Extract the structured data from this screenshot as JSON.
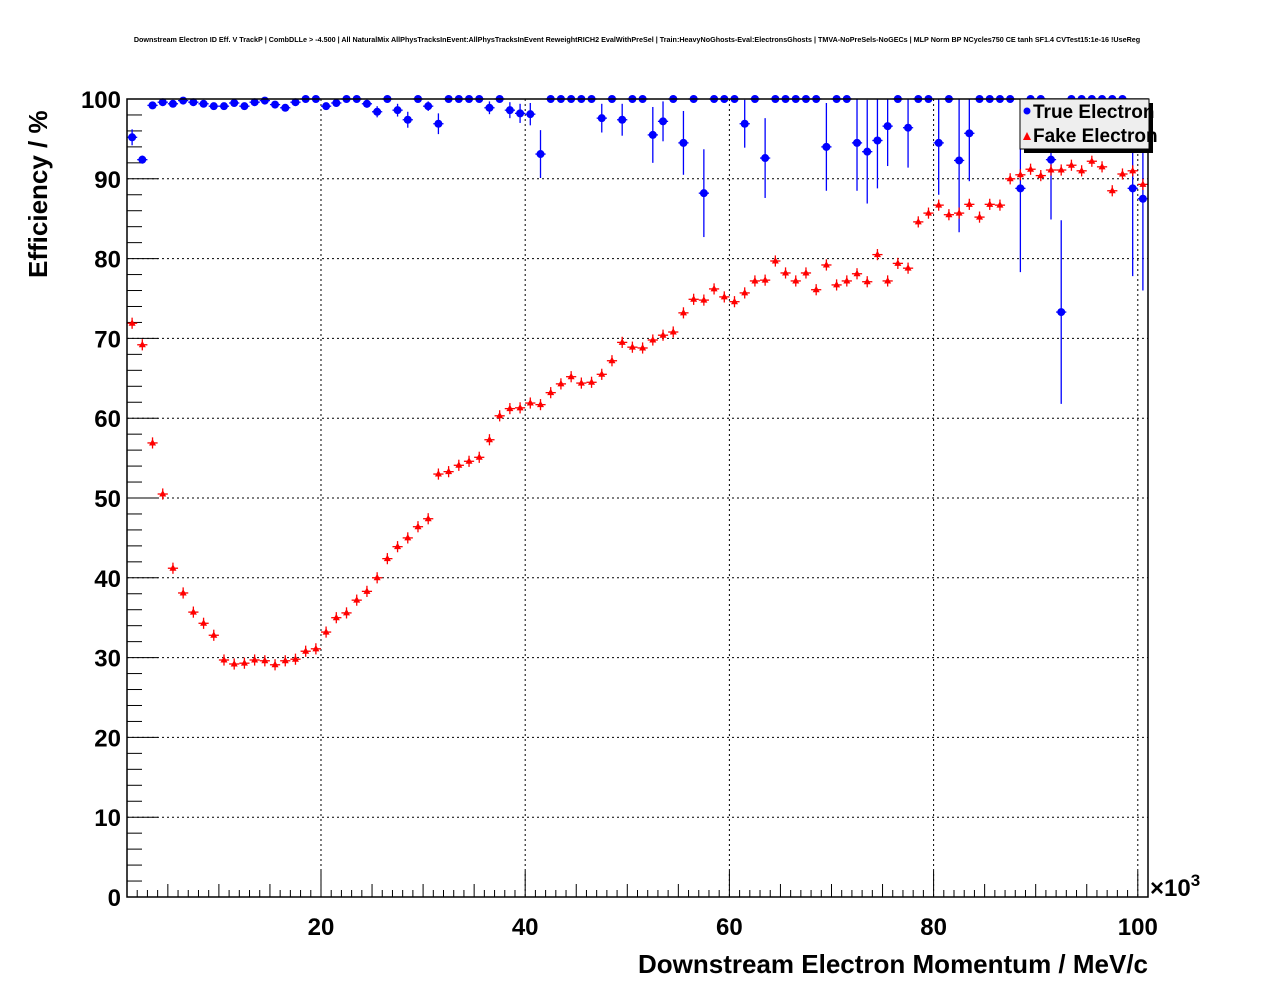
{
  "chart_data": {
    "type": "scatter",
    "title": "Downstream Electron ID Eff. V TrackP | CombDLLe > -4.500 | All NaturalMix AllPhysTracksInEvent:AllPhysTracksInEvent ReweightRICH2 EvalWithPreSel | Train:HeavyNoGhosts-Eval:ElectronsGhosts | TMVA-NoPreSels-NoGECs | MLP Norm BP NCycles750 CE tanh SF1.4 CVTest15:1e-16 !UseReg",
    "xlabel": "Downstream Electron Momentum / MeV/c",
    "ylabel": "Efficiency / %",
    "x_multiplier": "×10",
    "x_multiplier_exp": "3",
    "xlim": [
      1,
      101
    ],
    "ylim": [
      0,
      100
    ],
    "xticks": [
      "20",
      "40",
      "60",
      "80",
      "100"
    ],
    "yticks": [
      "0",
      "10",
      "20",
      "30",
      "40",
      "50",
      "60",
      "70",
      "80",
      "90",
      "100"
    ],
    "grid": true,
    "legend_position": "top-right",
    "x": [
      1.5,
      2.5,
      3.5,
      4.5,
      5.5,
      6.5,
      7.5,
      8.5,
      9.5,
      10.5,
      11.5,
      12.5,
      13.5,
      14.5,
      15.5,
      16.5,
      17.5,
      18.5,
      19.5,
      20.5,
      21.5,
      22.5,
      23.5,
      24.5,
      25.5,
      26.5,
      27.5,
      28.5,
      29.5,
      30.5,
      31.5,
      32.5,
      33.5,
      34.5,
      35.5,
      36.5,
      37.5,
      38.5,
      39.5,
      40.5,
      41.5,
      42.5,
      43.5,
      44.5,
      45.5,
      46.5,
      47.5,
      48.5,
      49.5,
      50.5,
      51.5,
      52.5,
      53.5,
      54.5,
      55.5,
      56.5,
      57.5,
      58.5,
      59.5,
      60.5,
      61.5,
      62.5,
      63.5,
      64.5,
      65.5,
      66.5,
      67.5,
      68.5,
      69.5,
      70.5,
      71.5,
      72.5,
      73.5,
      74.5,
      75.5,
      76.5,
      77.5,
      78.5,
      79.5,
      80.5,
      81.5,
      82.5,
      83.5,
      84.5,
      85.5,
      86.5,
      87.5,
      88.5,
      89.5,
      90.5,
      91.5,
      92.5,
      93.5,
      94.5,
      95.5,
      96.5,
      97.5,
      98.5,
      99.5,
      100.5
    ],
    "series": [
      {
        "name": "True Electron",
        "color": "#0000ff",
        "marker": "circle",
        "values": [
          95.2,
          92.4,
          99.2,
          99.6,
          99.4,
          99.8,
          99.6,
          99.4,
          99.1,
          99.1,
          99.5,
          99.1,
          99.6,
          99.8,
          99.3,
          98.9,
          99.6,
          100,
          100,
          99.1,
          99.5,
          100,
          100,
          99.4,
          98.4,
          100,
          98.6,
          97.4,
          100,
          99.1,
          96.9,
          100,
          100,
          100,
          100,
          98.9,
          100,
          98.6,
          98.2,
          98.1,
          93.1,
          100,
          100,
          100,
          100,
          100,
          97.6,
          100,
          97.4,
          100,
          100,
          95.5,
          97.2,
          100,
          94.5,
          100,
          88.2,
          100,
          100,
          100,
          96.9,
          100,
          92.6,
          100,
          100,
          100,
          100,
          100,
          94.0,
          100,
          100,
          94.5,
          93.4,
          94.8,
          96.6,
          100,
          96.4,
          100,
          100,
          94.5,
          100,
          92.3,
          95.7,
          100,
          100,
          100,
          100,
          88.8,
          100,
          100,
          92.4,
          73.3,
          100,
          100,
          100,
          100,
          100,
          100,
          88.8,
          87.5
        ],
        "errors": [
          1.0,
          0.5,
          0.3,
          0.3,
          0.3,
          0.2,
          0.3,
          0.3,
          0.3,
          0.3,
          0.3,
          0.3,
          0.3,
          0.2,
          0.3,
          0.4,
          0.3,
          0.2,
          0.2,
          0.4,
          0.3,
          0.2,
          0.2,
          0.5,
          0.7,
          0.2,
          0.8,
          1.0,
          0.2,
          0.6,
          1.3,
          0.2,
          0.2,
          0.2,
          0.2,
          0.8,
          0.2,
          1.0,
          1.2,
          1.4,
          3.0,
          0.2,
          0.2,
          0.2,
          0.2,
          0.2,
          1.8,
          0.2,
          2.0,
          0.2,
          0.2,
          3.5,
          2.5,
          0.2,
          4.0,
          0.2,
          5.5,
          0.2,
          0.2,
          0.2,
          3.0,
          0.2,
          5.0,
          0.2,
          0.2,
          0.2,
          0.2,
          0.2,
          5.5,
          0.2,
          0.2,
          6.0,
          6.5,
          6.0,
          5.0,
          0.2,
          5.0,
          0.2,
          0.2,
          6.5,
          0.2,
          9.0,
          6.0,
          0.2,
          0.2,
          0.2,
          0.2,
          10.5,
          0.2,
          0.2,
          7.5,
          11.5,
          0.2,
          0.2,
          0.2,
          0.2,
          0.2,
          0.2,
          11.0,
          11.5
        ]
      },
      {
        "name": "Fake Electron",
        "color": "#ff0000",
        "marker": "triangle",
        "values": [
          71.9,
          69.2,
          56.9,
          50.5,
          41.2,
          38.1,
          35.7,
          34.3,
          32.8,
          29.7,
          29.2,
          29.3,
          29.7,
          29.6,
          29.1,
          29.6,
          29.8,
          30.8,
          31.1,
          33.2,
          35.0,
          35.6,
          37.2,
          38.3,
          40.0,
          42.4,
          43.9,
          45.0,
          46.4,
          47.4,
          53.0,
          53.3,
          54.1,
          54.6,
          55.1,
          57.3,
          60.3,
          61.2,
          61.3,
          61.9,
          61.7,
          63.2,
          64.3,
          65.2,
          64.4,
          64.5,
          65.5,
          67.2,
          69.5,
          68.9,
          68.8,
          69.8,
          70.4,
          70.8,
          73.2,
          74.9,
          74.8,
          76.2,
          75.2,
          74.6,
          75.7,
          77.2,
          77.3,
          79.7,
          78.2,
          77.2,
          78.2,
          76.1,
          79.2,
          76.7,
          77.2,
          78.1,
          77.1,
          80.5,
          77.2,
          79.4,
          78.8,
          84.6,
          85.7,
          86.7,
          85.5,
          85.7,
          86.8,
          85.2,
          86.8,
          86.7,
          90.0,
          90.5,
          91.2,
          90.4,
          91.1,
          91.1,
          91.7,
          91.0,
          92.2,
          91.5,
          88.5,
          90.6,
          91.0,
          89.3
        ],
        "errors": 0.7
      }
    ]
  }
}
